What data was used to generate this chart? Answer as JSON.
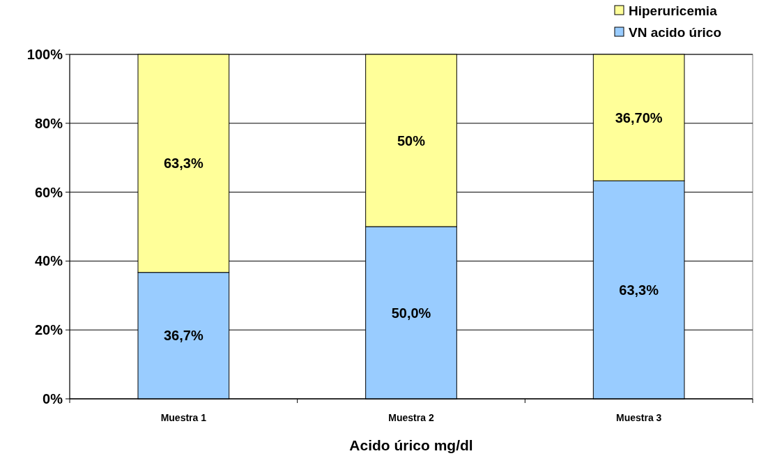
{
  "chart_data": {
    "type": "bar",
    "xlabel": "Acido úrico mg/dl",
    "categories": [
      "Muestra 1",
      "Muestra 2",
      "Muestra 3"
    ],
    "stacked": true,
    "series": [
      {
        "name": "VN acido úrico",
        "color": "#99ccff",
        "values": [
          36.7,
          50.0,
          63.3
        ],
        "value_labels": [
          "36,7%",
          "50,0%",
          "63,3%"
        ]
      },
      {
        "name": "Hiperuricemia",
        "color": "#ffff99",
        "values": [
          63.3,
          50,
          36.7
        ],
        "value_labels": [
          "63,3%",
          "50%",
          "36,70%"
        ]
      }
    ],
    "ylim": [
      0,
      100
    ],
    "yticks": [
      {
        "value": 0,
        "label": "0%"
      },
      {
        "value": 20,
        "label": "20%"
      },
      {
        "value": 40,
        "label": "40%"
      },
      {
        "value": 60,
        "label": "60%"
      },
      {
        "value": 80,
        "label": "80%"
      },
      {
        "value": 100,
        "label": "100%"
      }
    ],
    "grid": "y",
    "legend": "top right"
  }
}
